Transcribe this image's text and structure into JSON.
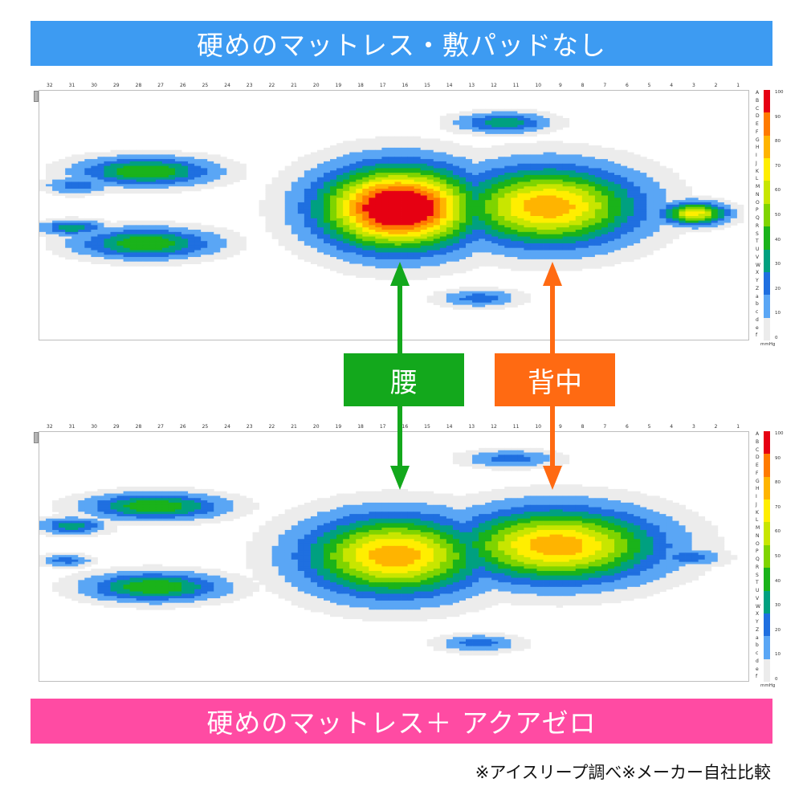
{
  "banners": {
    "top": "硬めのマットレス・敷パッドなし",
    "bottom": "硬めのマットレス＋ アクアゼロ"
  },
  "labels": {
    "waist": "腰",
    "back": "背中"
  },
  "footnote": "※アイスリープ調べ※メーカー自社比較",
  "colors": {
    "top_banner": "#3d9bf2",
    "bottom_banner": "#ff4ba3",
    "waist_label": "#13a81c",
    "back_label": "#ff6a12",
    "waist_arrow": "#13a81c",
    "back_arrow": "#ff6a12"
  },
  "chart_data": [
    {
      "type": "heatmap",
      "title": "",
      "x_tick_labels": [
        "32",
        "31",
        "30",
        "29",
        "28",
        "27",
        "26",
        "25",
        "24",
        "23",
        "22",
        "21",
        "20",
        "19",
        "18",
        "17",
        "16",
        "15",
        "14",
        "13",
        "12",
        "11",
        "10",
        "9",
        "8",
        "7",
        "6",
        "5",
        "4",
        "3",
        "2",
        "1"
      ],
      "y_tick_labels": [
        "A",
        "B",
        "C",
        "D",
        "E",
        "F",
        "G",
        "H",
        "I",
        "J",
        "K",
        "L",
        "M",
        "N",
        "O",
        "P",
        "Q",
        "R",
        "S",
        "T",
        "U",
        "V",
        "W",
        "X",
        "Y",
        "Z",
        "a",
        "b",
        "c",
        "d",
        "e",
        "f"
      ],
      "color_scale": {
        "ticks": [
          100,
          90,
          80,
          70,
          60,
          50,
          40,
          30,
          20,
          10,
          0
        ],
        "unit": "mmHg",
        "colors": [
          "#e60012",
          "#ff7a00",
          "#ffb400",
          "#ffee00",
          "#c8e600",
          "#7fd400",
          "#1ab31a",
          "#00a080",
          "#1f6fe0",
          "#5aa6f5",
          "#ececec"
        ]
      },
      "max_level": 10,
      "blobs": [
        {
          "col": 16.3,
          "row": 14.5,
          "cw": 2.2,
          "rh": 6.5,
          "peak": 10
        },
        {
          "col": 9.6,
          "row": 14.3,
          "cw": 2.5,
          "rh": 6.2,
          "peak": 7
        },
        {
          "col": 3.0,
          "row": 15.2,
          "cw": 0.9,
          "rh": 1.8,
          "peak": 6
        },
        {
          "col": 27.7,
          "row": 9.8,
          "cw": 1.9,
          "rh": 2.3,
          "peak": 4
        },
        {
          "col": 27.7,
          "row": 19.0,
          "cw": 1.9,
          "rh": 2.4,
          "peak": 4
        },
        {
          "col": 30.8,
          "row": 11.6,
          "cw": 0.9,
          "rh": 1.4,
          "peak": 2
        },
        {
          "col": 31.0,
          "row": 17.0,
          "cw": 0.9,
          "rh": 1.2,
          "peak": 3
        },
        {
          "col": 11.6,
          "row": 3.6,
          "cw": 1.3,
          "rh": 1.6,
          "peak": 3
        },
        {
          "col": 12.7,
          "row": 26.0,
          "cw": 1.1,
          "rh": 1.4,
          "peak": 2
        },
        {
          "col": 13.2,
          "row": 14.0,
          "cw": 1.2,
          "rh": 2.5,
          "peak": 2
        }
      ]
    },
    {
      "type": "heatmap",
      "title": "",
      "x_tick_labels": [
        "32",
        "31",
        "30",
        "29",
        "28",
        "27",
        "26",
        "25",
        "24",
        "23",
        "22",
        "21",
        "20",
        "19",
        "18",
        "17",
        "16",
        "15",
        "14",
        "13",
        "12",
        "11",
        "10",
        "9",
        "8",
        "7",
        "6",
        "5",
        "4",
        "3",
        "2",
        "1"
      ],
      "y_tick_labels": [
        "A",
        "B",
        "C",
        "D",
        "E",
        "F",
        "G",
        "H",
        "I",
        "J",
        "K",
        "L",
        "M",
        "N",
        "O",
        "P",
        "Q",
        "R",
        "S",
        "T",
        "U",
        "V",
        "W",
        "X",
        "Y",
        "Z",
        "a",
        "b",
        "c",
        "d",
        "e",
        "f"
      ],
      "color_scale": {
        "ticks": [
          100,
          90,
          80,
          70,
          60,
          50,
          40,
          30,
          20,
          10,
          0
        ],
        "unit": "mmHg",
        "colors": [
          "#e60012",
          "#ff7a00",
          "#ffb400",
          "#ffee00",
          "#c8e600",
          "#7fd400",
          "#1ab31a",
          "#00a080",
          "#1f6fe0",
          "#5aa6f5",
          "#ececec"
        ]
      },
      "max_level": 10,
      "blobs": [
        {
          "col": 16.5,
          "row": 15.3,
          "cw": 2.5,
          "rh": 6.3,
          "peak": 7
        },
        {
          "col": 9.2,
          "row": 14.0,
          "cw": 2.8,
          "rh": 5.8,
          "peak": 7
        },
        {
          "col": 27.3,
          "row": 9.0,
          "cw": 1.9,
          "rh": 2.1,
          "peak": 4
        },
        {
          "col": 27.3,
          "row": 19.3,
          "cw": 1.9,
          "rh": 2.3,
          "peak": 4
        },
        {
          "col": 31.0,
          "row": 11.5,
          "cw": 0.9,
          "rh": 1.3,
          "peak": 3
        },
        {
          "col": 31.3,
          "row": 15.9,
          "cw": 0.7,
          "rh": 1.0,
          "peak": 2
        },
        {
          "col": 11.3,
          "row": 2.9,
          "cw": 1.3,
          "rh": 1.4,
          "peak": 2
        },
        {
          "col": 12.7,
          "row": 26.5,
          "cw": 1.1,
          "rh": 1.4,
          "peak": 2
        },
        {
          "col": 3.3,
          "row": 15.5,
          "cw": 1.0,
          "rh": 1.4,
          "peak": 2
        },
        {
          "col": 13.2,
          "row": 14.5,
          "cw": 1.2,
          "rh": 2.5,
          "peak": 2
        }
      ]
    }
  ]
}
